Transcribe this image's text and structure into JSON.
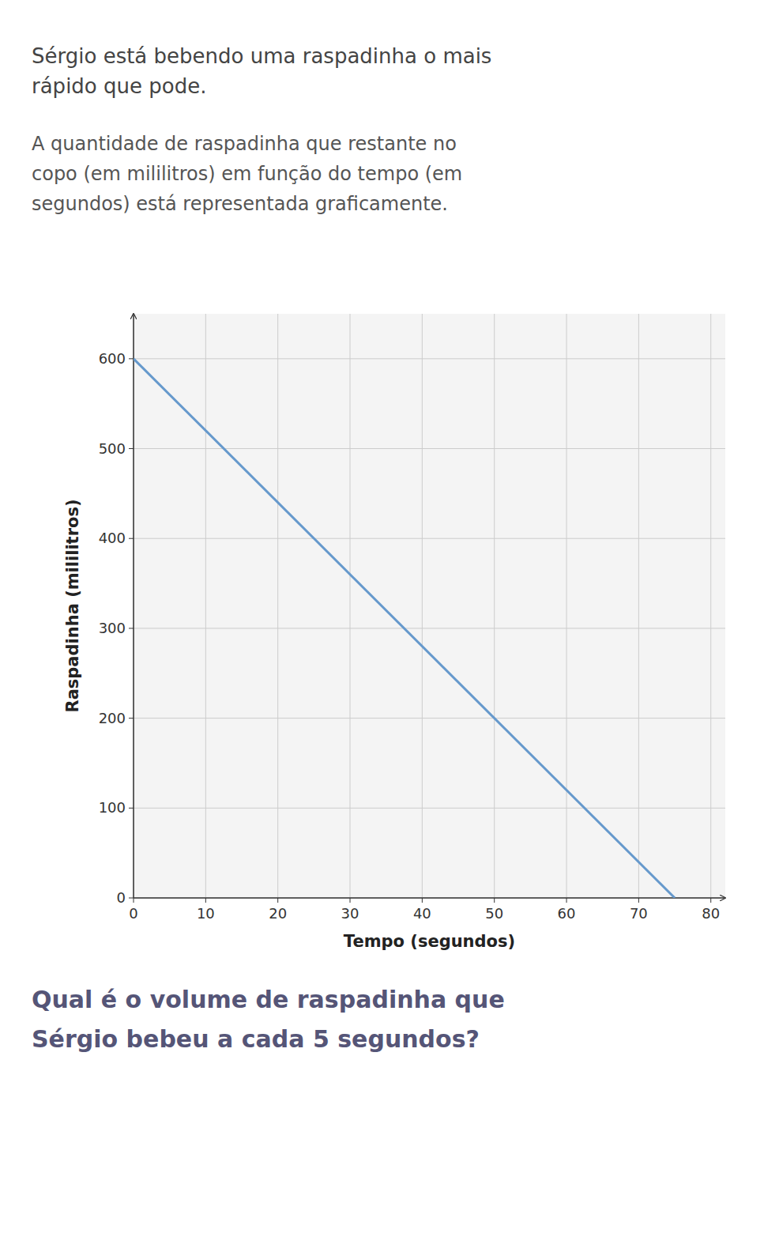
{
  "chart_data": {
    "type": "line",
    "title": [
      "Sérgio está bebendo uma raspadinha o mais",
      "rápido que pode."
    ],
    "subtitle": [
      "A quantidade de raspadinha que restante no",
      "copo (em mililitros) em função do tempo (em",
      "segundos) está representada graficamente."
    ],
    "annotations": [
      "Qual é o volume de raspadinha que",
      "Sérgio bebeu a cada 5 segundos?"
    ],
    "xlabel": "Tempo (segundos)",
    "ylabel": "Raspadinha (mililitros)",
    "x": [
      0,
      75
    ],
    "values": [
      600,
      0
    ],
    "color": "#6699cc",
    "xlim": [
      0,
      82
    ],
    "ylim": [
      0,
      650
    ],
    "xticks": [
      0,
      10,
      20,
      30,
      40,
      50,
      60,
      70,
      80
    ],
    "yticks": [
      0,
      100,
      200,
      300,
      400,
      500,
      600
    ],
    "grid": true
  }
}
